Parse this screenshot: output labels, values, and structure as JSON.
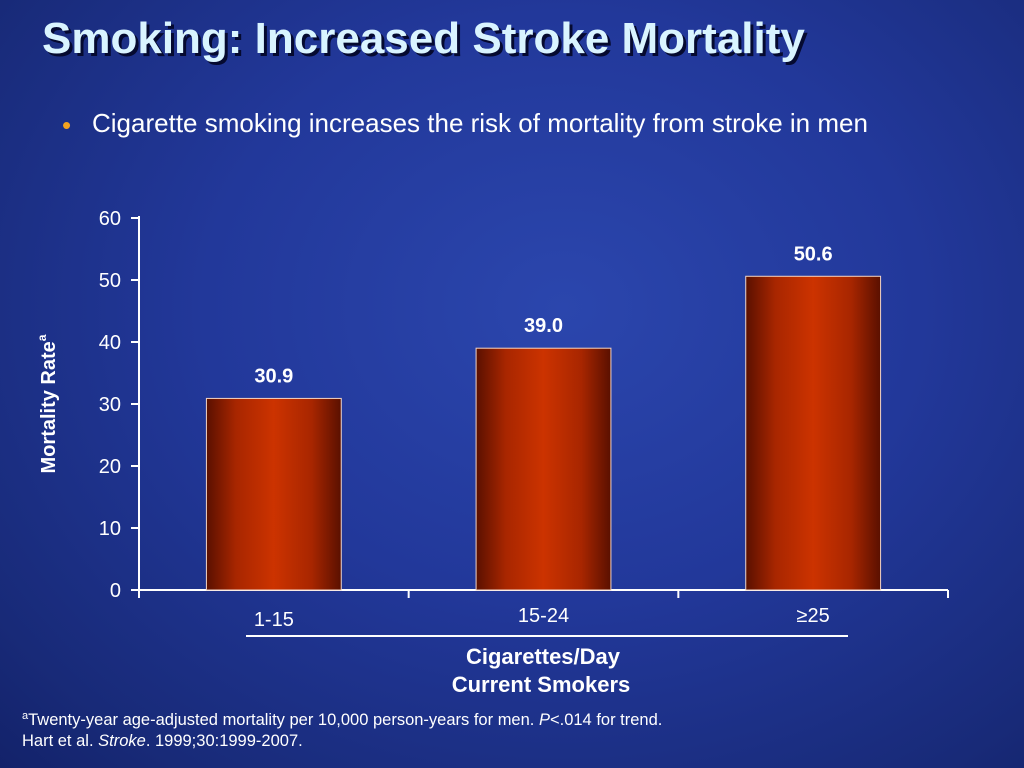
{
  "slide": {
    "title": "Smoking: Increased Stroke Mortality",
    "bullet": "Cigarette smoking increases the risk of mortality from stroke in men"
  },
  "chart_data": {
    "type": "bar",
    "categories": [
      "1-15",
      "15-24",
      "≥25"
    ],
    "values": [
      30.9,
      39.0,
      50.6
    ],
    "value_labels": [
      "30.9",
      "39.0",
      "50.6"
    ],
    "ylabel": "Mortality Rate",
    "ylabel_superscript": "a",
    "xlabel_line1": "Cigarettes/Day",
    "xlabel_line2": "Current Smokers",
    "ylim": [
      0,
      60
    ],
    "yticks": [
      0,
      10,
      20,
      30,
      40,
      50,
      60
    ],
    "grid": false,
    "bar_color": "#cc3300",
    "bar_edge_color": "#5a1000"
  },
  "footnote": {
    "marker": "a",
    "line1_text": "Twenty-year age-adjusted mortality per 10,000 person-years for men. ",
    "line1_p": "P",
    "line1_tail": "<.014 for trend.",
    "line2_author": "Hart et al. ",
    "line2_journal": "Stroke",
    "line2_tail": ". 1999;30:1999-2007."
  },
  "colors": {
    "background": "#22389a",
    "title": "#d9f4ff",
    "bullet": "#f4a31f",
    "text": "#ffffff"
  }
}
